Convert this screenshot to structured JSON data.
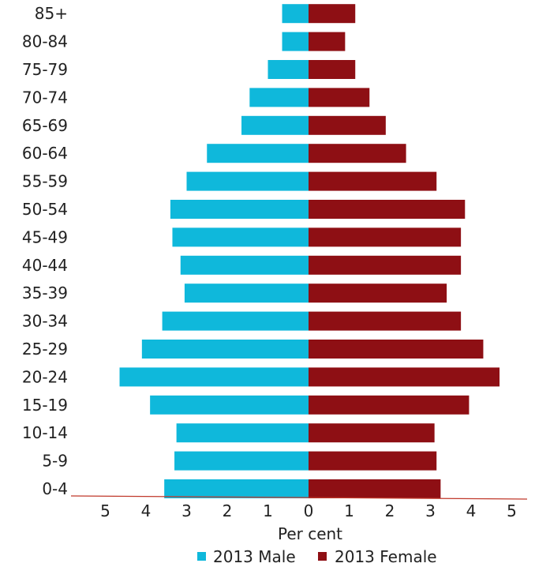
{
  "chart_data": {
    "type": "bar",
    "orientation": "horizontal-diverging",
    "categories": [
      "0-4",
      "5-9",
      "10-14",
      "15-19",
      "20-24",
      "25-29",
      "30-34",
      "35-39",
      "40-44",
      "45-49",
      "50-54",
      "55-59",
      "60-64",
      "65-69",
      "70-74",
      "75-79",
      "80-84",
      "85+"
    ],
    "series": [
      {
        "name": "2013 Male",
        "color": "#0fb8db",
        "values": [
          3.55,
          3.3,
          3.25,
          3.9,
          4.65,
          4.1,
          3.6,
          3.05,
          3.15,
          3.35,
          3.4,
          3.0,
          2.5,
          1.65,
          1.45,
          1.0,
          0.65,
          0.65
        ]
      },
      {
        "name": "2013 Female",
        "color": "#8e0f14",
        "values": [
          3.25,
          3.15,
          3.1,
          3.95,
          4.7,
          4.3,
          3.75,
          3.4,
          3.75,
          3.75,
          3.85,
          3.15,
          2.4,
          1.9,
          1.5,
          1.15,
          0.9,
          1.15
        ]
      }
    ],
    "x_ticks": [
      "5",
      "4",
      "3",
      "2",
      "1",
      "0",
      "1",
      "2",
      "3",
      "4",
      "5"
    ],
    "xlim": [
      -5,
      5
    ],
    "xlabel": "Per cent",
    "ylabel": "",
    "title": "",
    "legend_position": "bottom",
    "axis_line_color": "#c0392b"
  }
}
